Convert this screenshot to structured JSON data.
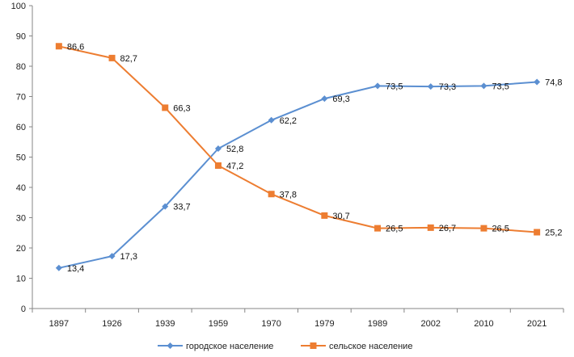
{
  "chart_data": {
    "type": "line",
    "categories": [
      "1897",
      "1926",
      "1939",
      "1959",
      "1970",
      "1979",
      "1989",
      "2002",
      "2010",
      "2021"
    ],
    "ylim": [
      0,
      100
    ],
    "yticks": [
      0,
      10,
      20,
      30,
      40,
      50,
      60,
      70,
      80,
      90,
      100
    ],
    "grid": false,
    "legend_position": "bottom",
    "series": [
      {
        "name": "городское население",
        "color": "#5b8fd1",
        "marker": "diamond",
        "values": [
          13.4,
          17.3,
          33.7,
          52.8,
          62.2,
          69.3,
          73.5,
          73.3,
          73.5,
          74.8
        ],
        "labels": [
          "13,4",
          "17,3",
          "33,7",
          "52,8",
          "62,2",
          "69,3",
          "73,5",
          "73,3",
          "73,5",
          "74,8"
        ]
      },
      {
        "name": "сельское население",
        "color": "#ed7d31",
        "marker": "square",
        "values": [
          86.6,
          82.7,
          66.3,
          47.2,
          37.8,
          30.7,
          26.5,
          26.7,
          26.5,
          25.2
        ],
        "labels": [
          "86,6",
          "82,7",
          "66,3",
          "47,2",
          "37,8",
          "30,7",
          "26,5",
          "26,7",
          "26,5",
          "25,2"
        ]
      }
    ]
  }
}
